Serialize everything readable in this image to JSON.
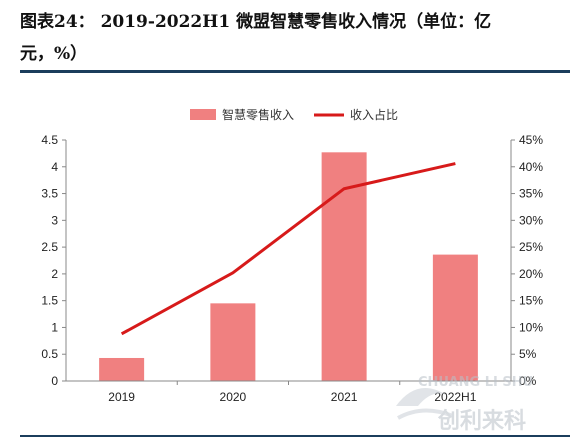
{
  "figure": {
    "title_line1": "图表24： 2019-2022H1 微盟智慧零售收入情况（单位：亿",
    "title_line2": "元，%）"
  },
  "watermark": {
    "text_top": "CHUANG LI SHU",
    "text_bottom": "创利来科"
  },
  "chart_data": {
    "type": "bar+line",
    "categories": [
      "2019",
      "2020",
      "2021",
      "2022H1"
    ],
    "series": [
      {
        "name": "智慧零售收入",
        "type": "bar",
        "axis": "left",
        "color": "#f08080",
        "values": [
          0.43,
          1.45,
          4.27,
          2.36
        ]
      },
      {
        "name": "收入占比",
        "type": "line",
        "axis": "right",
        "color": "#d71a1a",
        "values": [
          8.8,
          20.2,
          35.9,
          40.6
        ]
      }
    ],
    "y_left": {
      "min": 0,
      "max": 4.5,
      "ticks": [
        "0",
        "0.5",
        "1",
        "1.5",
        "2",
        "2.5",
        "3",
        "3.5",
        "4",
        "4.5"
      ]
    },
    "y_right": {
      "min": 0,
      "max": 45,
      "ticks": [
        "0%",
        "5%",
        "10%",
        "15%",
        "20%",
        "25%",
        "30%",
        "35%",
        "40%",
        "45%"
      ]
    },
    "legend_position": "top-center",
    "grid": false
  }
}
